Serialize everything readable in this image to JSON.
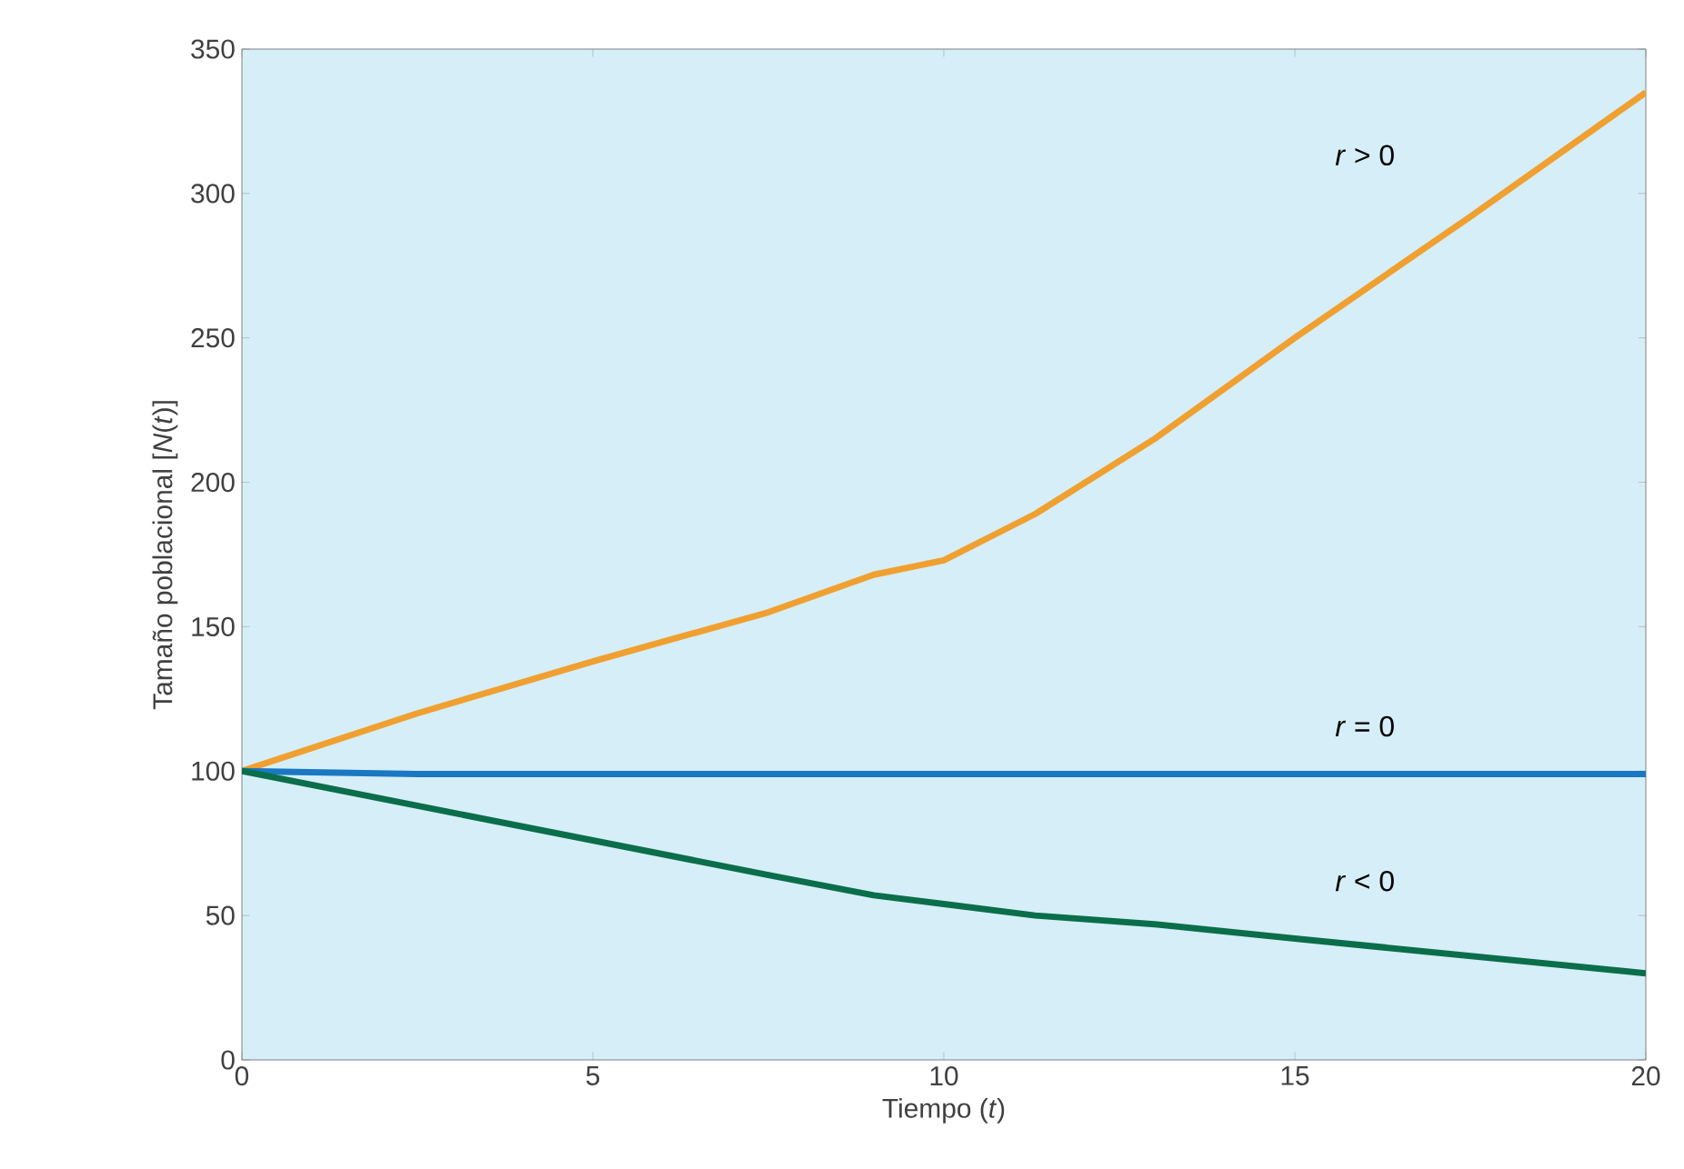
{
  "chart_data": {
    "type": "line",
    "xlabel": "Tiempo (*t*)",
    "ylabel": "Tamaño poblacional [*N*(*t*)]",
    "x": [
      0,
      2.5,
      5,
      7.5,
      9,
      10,
      11.3,
      13,
      15,
      17.5,
      20
    ],
    "series": [
      {
        "color": "#f0a030",
        "values": [
          100,
          120,
          138,
          155,
          168,
          173,
          189,
          215,
          250,
          292,
          335
        ]
      },
      {
        "color": "#1a78c2",
        "values": [
          100,
          99,
          99,
          99,
          99,
          99,
          99,
          99,
          99,
          99,
          99
        ]
      },
      {
        "color": "#0a6e4a",
        "values": [
          100,
          88,
          76,
          64,
          57,
          54,
          50,
          47,
          42,
          36,
          30
        ]
      }
    ],
    "annotations": [
      "*r* > 0",
      "*r* = 0",
      "*r* < 0"
    ],
    "xlim": [
      0,
      20
    ],
    "ylim": [
      0,
      350
    ],
    "xticks": [
      0,
      5,
      10,
      15,
      20
    ],
    "yticks": [
      0,
      50,
      100,
      150,
      200,
      250,
      300,
      350
    ],
    "grid": false,
    "marker": "none",
    "line_style": "solid"
  }
}
